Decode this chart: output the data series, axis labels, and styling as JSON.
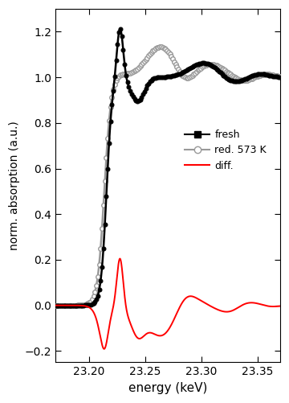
{
  "xlabel": "energy (keV)",
  "ylabel": "norm. absorption (a.u.)",
  "xlim": [
    23.17,
    23.37
  ],
  "ylim": [
    -0.25,
    1.3
  ],
  "xticks": [
    23.2,
    23.25,
    23.3,
    23.35
  ],
  "yticks": [
    -0.2,
    0.0,
    0.2,
    0.4,
    0.6,
    0.8,
    1.0,
    1.2
  ],
  "fresh_color": "black",
  "reduced_color": "#999999",
  "diff_color": "red",
  "legend_labels": [
    "fresh",
    "red. 573 K",
    "diff."
  ]
}
